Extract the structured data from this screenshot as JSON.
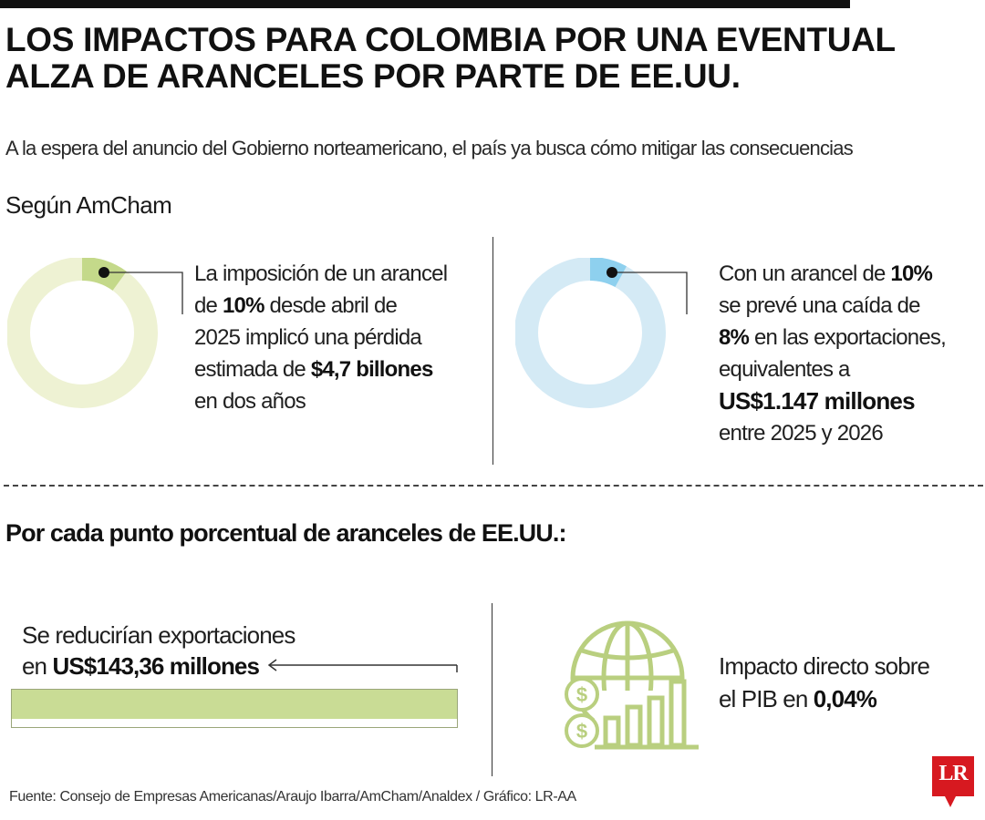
{
  "header": {
    "title_line1": "LOS IMPACTOS PARA COLOMBIA POR UNA EVENTUAL",
    "title_line2": "ALZA DE ARANCELES POR PARTE DE EE.UU.",
    "subtitle": "A la espera del anuncio del Gobierno norteamericano, el país ya busca cómo mitigar las consecuencias",
    "section_label": "Según AmCham"
  },
  "block1": {
    "l1": "La imposición de un arancel",
    "l2_bold": "10%",
    "l2_pre": "de ",
    "l2_post": " desde abril de",
    "l3": "2025 implicó una pérdida",
    "l4_pre": "estimada de ",
    "l4_bold": "$4,7 billones",
    "l5": "en dos años"
  },
  "block2": {
    "l1_pre": "Con un arancel de ",
    "l1_bold": "10%",
    "l2": "se prevé una caída de",
    "l3_bold": "8%",
    "l3_post": " en las exportaciones,",
    "l4": "equivalentes a",
    "l5_bold": "US$1.147 millones",
    "l6": "entre 2025 y 2026"
  },
  "section2": {
    "label": "Por cada punto porcentual de aranceles de EE.UU.:"
  },
  "bar_block": {
    "l1": "Se reducirían exportaciones",
    "l2_pre": "en ",
    "l2_bold": "US$143,36 millones"
  },
  "pib_block": {
    "l1": "Impacto directo sobre",
    "l2_pre": "el PIB en ",
    "l2_bold": "0,04%"
  },
  "footer": {
    "source": "Fuente: Consejo de Empresas Americanas/Araujo Ibarra/AmCham/Analdex / Gráfico: LR-AA",
    "logo": "LR"
  },
  "colors": {
    "green_light": "#eef2d3",
    "green_accent": "#c4d98a",
    "blue_light": "#d4eaf5",
    "blue_accent": "#8ed0ee",
    "bar_fill": "#c9dc95",
    "globe_icon": "#b9cf7f",
    "logo_red": "#d71920"
  },
  "chart_data": [
    {
      "type": "pie",
      "series": [
        {
          "values": [
            10,
            90
          ]
        }
      ]
    },
    {
      "type": "pie",
      "series": [
        {
          "values": [
            8,
            92
          ]
        }
      ]
    },
    {
      "type": "bar",
      "values": [
        143.36
      ]
    }
  ]
}
